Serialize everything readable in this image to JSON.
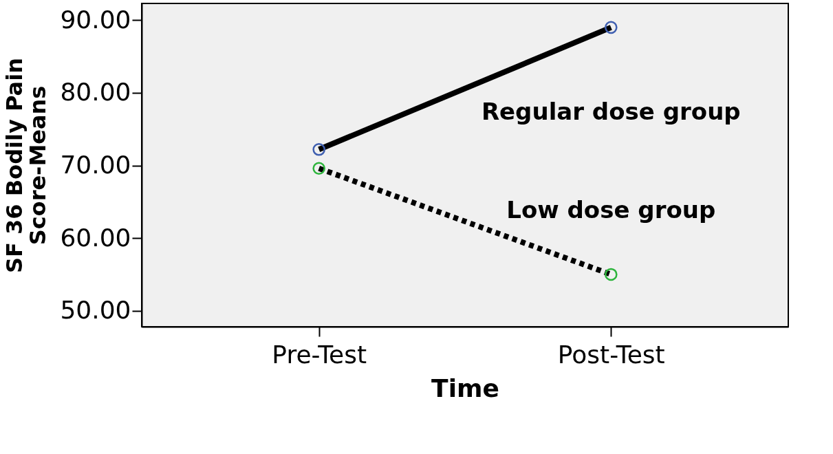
{
  "chart_data": {
    "type": "line",
    "xlabel": "Time",
    "ylabel": "SF 36 Bodily Pain Score-Means",
    "categories": [
      "Pre-Test",
      "Post-Test"
    ],
    "series": [
      {
        "name": "Regular dose group",
        "color": "#000000",
        "colors": [
          "#3f5fb0",
          "#3f5fb0"
        ],
        "line_style": "solid",
        "values": [
          72.2,
          89.0
        ]
      },
      {
        "name": "Low dose group",
        "color": "#000000",
        "colors": [
          "#2db43c",
          "#2db43c"
        ],
        "line_style": "dotted",
        "values": [
          69.6,
          55.0
        ]
      }
    ],
    "ylim": [
      47.8,
      92.3
    ],
    "yticks": [
      {
        "value": 50,
        "label": "50.00"
      },
      {
        "value": 60,
        "label": "60.00"
      },
      {
        "value": 70,
        "label": "70.00"
      },
      {
        "value": 80,
        "label": "80.00"
      },
      {
        "value": 90,
        "label": "90.00"
      }
    ],
    "marker": "circle"
  }
}
